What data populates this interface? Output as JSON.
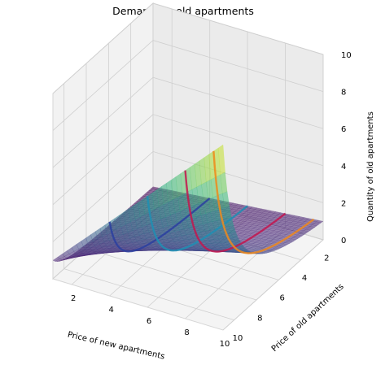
{
  "chart_data": {
    "type": "surface3d",
    "title": "Demand for old apartments",
    "xlabel": "Price of new apartments",
    "ylabel": "Price of old apartments",
    "zlabel": "Quantity of old apartments",
    "xlim": [
      1,
      10
    ],
    "ylim": [
      10,
      1
    ],
    "zlim": [
      0,
      10
    ],
    "x_ticks": [
      2,
      4,
      6,
      8,
      10
    ],
    "y_ticks": [
      2,
      4,
      6,
      8,
      10
    ],
    "z_ticks": [
      0,
      2,
      4,
      6,
      8,
      10
    ],
    "colormap": "viridis",
    "grid": true,
    "surface": {
      "description_formula": "quantity = clip(price_new / price_old, 0, 10)"
    },
    "curves": [
      {
        "x": 4,
        "color": "#2c3fa0"
      },
      {
        "x": 6,
        "color": "#1f8fb4"
      },
      {
        "x": 8,
        "color": "#c4164f"
      },
      {
        "x": 9.5,
        "color": "#f08a1c"
      }
    ]
  }
}
